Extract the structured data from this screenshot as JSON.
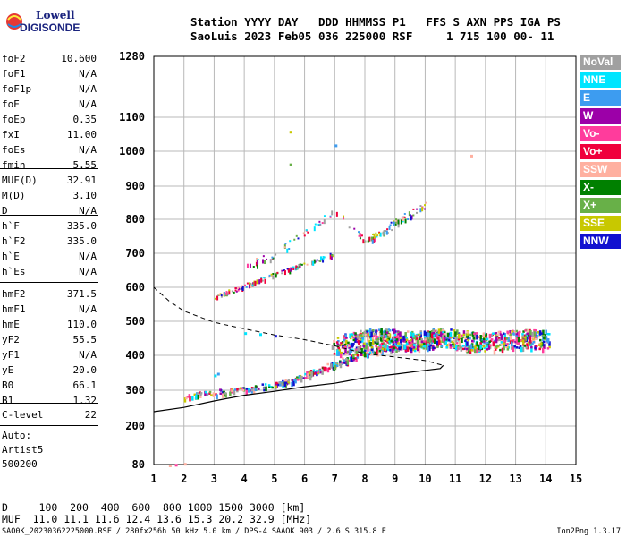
{
  "logo": {
    "line1": "Lowell",
    "line2": "DIGISONDE"
  },
  "header": {
    "labels": "Station YYYY DAY   DDD HHMMSS P1   FFS S AXN PPS IGA PS",
    "values": "SaoLuis 2023 Feb05 036 225000 RSF     1 715 100 00- 11"
  },
  "params": {
    "group1": [
      {
        "name": "foF2",
        "value": "10.600"
      },
      {
        "name": "foF1",
        "value": "N/A"
      },
      {
        "name": "foF1p",
        "value": "N/A"
      },
      {
        "name": "foE",
        "value": "N/A"
      },
      {
        "name": "foEp",
        "value": "0.35"
      },
      {
        "name": "fxI",
        "value": "11.00"
      },
      {
        "name": "foEs",
        "value": "N/A"
      },
      {
        "name": "fmin",
        "value": "5.55"
      }
    ],
    "group2": [
      {
        "name": "MUF(D)",
        "value": "32.91"
      },
      {
        "name": "M(D)",
        "value": "3.10"
      },
      {
        "name": "D",
        "value": "N/A"
      }
    ],
    "group3": [
      {
        "name": "h`F",
        "value": "335.0"
      },
      {
        "name": "h`F2",
        "value": "335.0"
      },
      {
        "name": "h`E",
        "value": "N/A"
      },
      {
        "name": "h`Es",
        "value": "N/A"
      }
    ],
    "group4": [
      {
        "name": "hmF2",
        "value": "371.5"
      },
      {
        "name": "hmF1",
        "value": "N/A"
      },
      {
        "name": "hmE",
        "value": "110.0"
      },
      {
        "name": "yF2",
        "value": "55.5"
      },
      {
        "name": "yF1",
        "value": "N/A"
      },
      {
        "name": "yE",
        "value": "20.0"
      },
      {
        "name": "B0",
        "value": "66.1"
      },
      {
        "name": "B1",
        "value": "1.32"
      }
    ],
    "group5": [
      {
        "name": "C-level",
        "value": "22"
      }
    ]
  },
  "autoscaling": {
    "line1": "Auto:",
    "line2": "Artist5",
    "line3": "500200"
  },
  "legend": [
    {
      "label": "NoVal",
      "color": "#a0a0a0"
    },
    {
      "label": "NNE",
      "color": "#00e5ff"
    },
    {
      "label": "E",
      "color": "#3d9cf0"
    },
    {
      "label": "W",
      "color": "#9c00a8"
    },
    {
      "label": "Vo-",
      "color": "#ff3c9c"
    },
    {
      "label": "Vo+",
      "color": "#f0003c"
    },
    {
      "label": "SSW",
      "color": "#ffb0a0"
    },
    {
      "label": "X-",
      "color": "#008000"
    },
    {
      "label": "X+",
      "color": "#68b048"
    },
    {
      "label": "SSE",
      "color": "#c8c800"
    },
    {
      "label": "NNW",
      "color": "#1010d0"
    }
  ],
  "bottom": {
    "d_line": "D     100  200  400  600  800 1000 1500 3000 [km]",
    "muf_line": "MUF  11.0 11.1 11.6 12.4 13.6 15.3 20.2 32.9 [MHz]"
  },
  "footer": {
    "info": "SAO0K_20230362225000.RSF / 280fx256h 50 kHz 5.0 km / DPS-4 SAAOK 903 / 2.6 S 315.8 E",
    "version": "Ion2Png 1.3.17"
  },
  "chart_data": {
    "type": "scatter",
    "xlabel": "",
    "ylabel": "",
    "xlim": [
      1,
      15
    ],
    "ylim": [
      80,
      1280
    ],
    "y_scale": "nonlinear",
    "x_ticks": [
      1,
      2,
      3,
      4,
      5,
      6,
      7,
      8,
      9,
      10,
      11,
      12,
      13,
      14,
      15
    ],
    "y_ticks": [
      80,
      200,
      300,
      400,
      500,
      600,
      700,
      800,
      900,
      1000,
      1100,
      1280
    ],
    "grid": true,
    "curves": {
      "height_profile": [
        [
          1.0,
          240
        ],
        [
          2.0,
          252
        ],
        [
          3.0,
          270
        ],
        [
          4.0,
          286
        ],
        [
          5.0,
          297
        ],
        [
          6.0,
          310
        ],
        [
          7.0,
          320
        ],
        [
          8.0,
          336
        ],
        [
          9.0,
          346
        ],
        [
          10.0,
          357
        ],
        [
          10.5,
          362
        ],
        [
          10.6,
          371
        ]
      ],
      "extended_profile_dashed": [
        [
          1.0,
          600
        ],
        [
          1.5,
          560
        ],
        [
          2.0,
          530
        ],
        [
          3.0,
          497
        ],
        [
          4.0,
          478
        ],
        [
          5.0,
          460
        ],
        [
          6.0,
          446
        ],
        [
          7.0,
          428
        ],
        [
          8.0,
          405
        ],
        [
          9.0,
          395
        ],
        [
          10.0,
          385
        ],
        [
          10.6,
          371
        ]
      ]
    },
    "traces": [
      {
        "name": "o-trace F2",
        "points": [
          [
            2.0,
            282
          ],
          [
            3.0,
            296
          ],
          [
            4.0,
            305
          ],
          [
            5.0,
            318
          ],
          [
            5.5,
            330
          ],
          [
            6.0,
            345
          ],
          [
            6.5,
            360
          ],
          [
            7.0,
            378
          ],
          [
            7.5,
            395
          ],
          [
            8.0,
            410
          ],
          [
            8.5,
            420
          ],
          [
            9.0,
            425
          ],
          [
            9.5,
            430
          ],
          [
            10.0,
            440
          ],
          [
            10.3,
            460
          ],
          [
            10.6,
            470
          ]
        ]
      },
      {
        "name": "second hop",
        "points": [
          [
            3.0,
            572
          ],
          [
            4.0,
            605
          ],
          [
            5.0,
            640
          ],
          [
            6.0,
            670
          ],
          [
            7.0,
            700
          ]
        ]
      },
      {
        "name": "second hop upper",
        "points": [
          [
            4.0,
            660
          ],
          [
            5.0,
            700
          ],
          [
            6.0,
            760
          ],
          [
            7.0,
            830
          ],
          [
            8.0,
            740
          ],
          [
            8.5,
            760
          ],
          [
            9.0,
            790
          ],
          [
            9.5,
            820
          ],
          [
            10.0,
            845
          ]
        ]
      },
      {
        "name": "spread F",
        "points": [
          [
            7.0,
            430
          ],
          [
            7.5,
            440
          ],
          [
            8.0,
            450
          ],
          [
            8.5,
            455
          ],
          [
            9.0,
            450
          ],
          [
            9.5,
            445
          ],
          [
            10.0,
            450
          ],
          [
            10.5,
            455
          ],
          [
            11.0,
            450
          ],
          [
            11.5,
            445
          ],
          [
            12.0,
            440
          ],
          [
            12.5,
            445
          ],
          [
            13.0,
            450
          ],
          [
            13.5,
            450
          ],
          [
            14.0,
            448
          ]
        ]
      },
      {
        "name": "sporadic",
        "points": [
          [
            3.0,
            345
          ],
          [
            3.1,
            350
          ],
          [
            4.0,
            468
          ],
          [
            4.5,
            465
          ],
          [
            5.0,
            460
          ],
          [
            5.5,
            1060
          ],
          [
            5.5,
            965
          ],
          [
            7.0,
            1020
          ],
          [
            11.5,
            990
          ],
          [
            1.5,
            80
          ],
          [
            1.7,
            82
          ],
          [
            2.0,
            85
          ]
        ]
      }
    ]
  }
}
